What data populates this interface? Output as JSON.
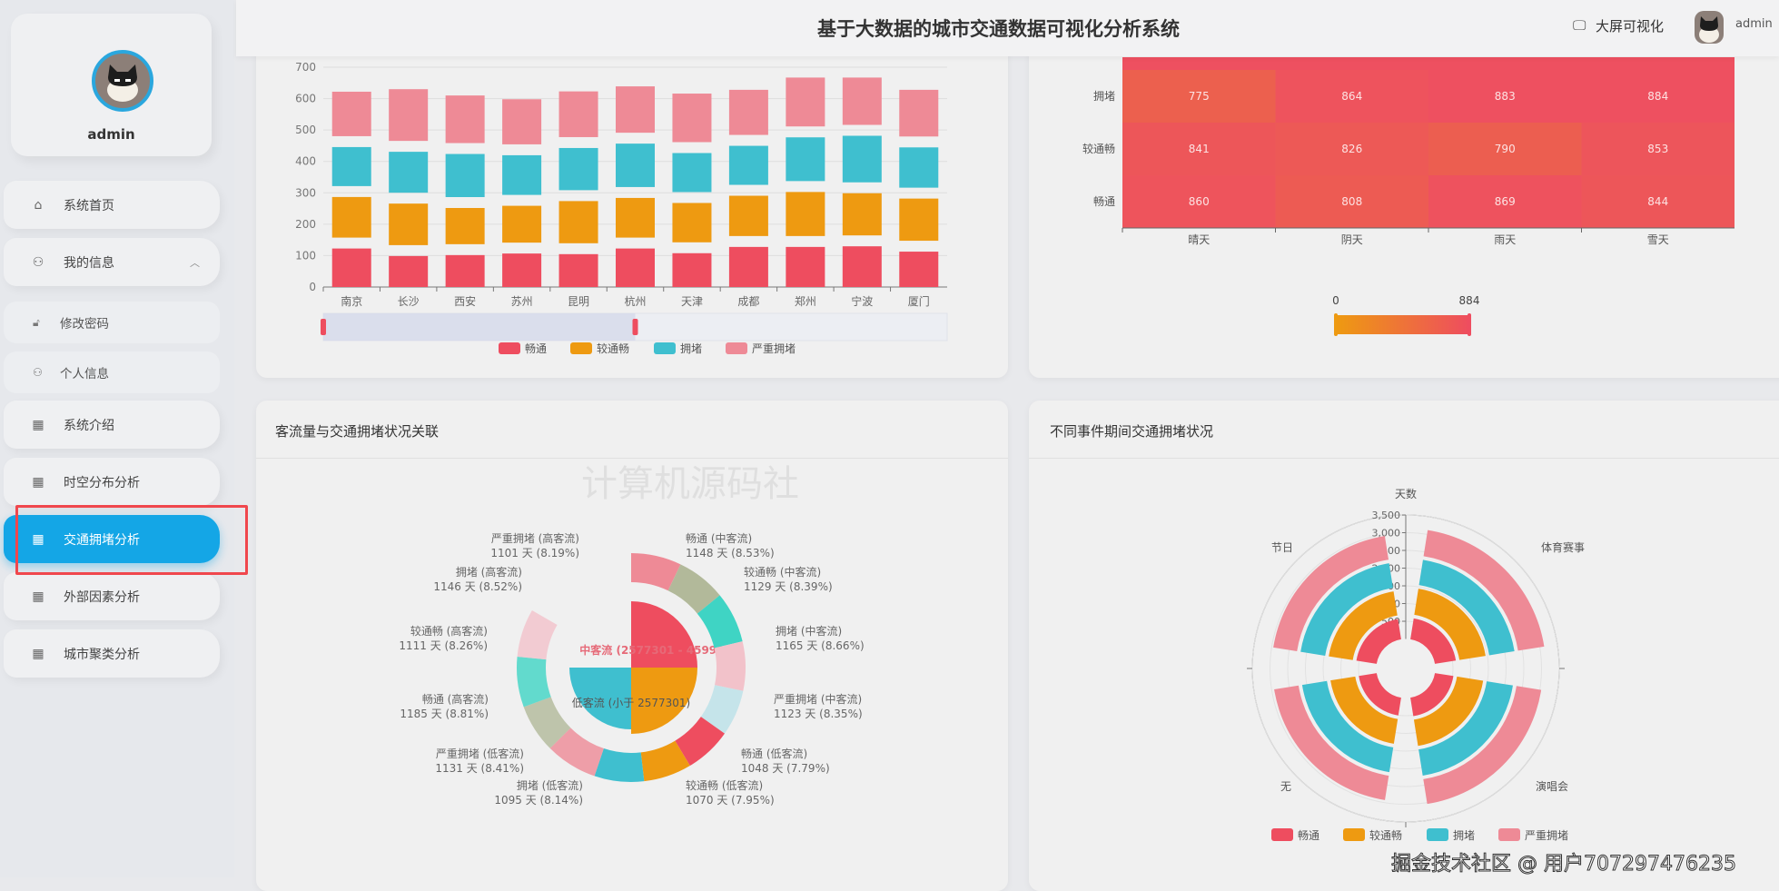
{
  "header": {
    "title": "基于大数据的城市交通数据可视化分析系统",
    "bigscreen_label": "大屏可视化",
    "user": "admin",
    "bigscreen_icon": "monitor-icon"
  },
  "sidebar": {
    "username": "admin",
    "items": [
      {
        "label": "系统首页",
        "icon": "home-icon"
      },
      {
        "label": "我的信息",
        "icon": "user-icon"
      },
      {
        "label": "修改密码",
        "icon": "lock-icon"
      },
      {
        "label": "个人信息",
        "icon": "user-icon"
      },
      {
        "label": "系统介绍",
        "icon": "grid-icon"
      },
      {
        "label": "时空分布分析",
        "icon": "grid-icon"
      },
      {
        "label": "交通拥堵分析",
        "icon": "grid-icon"
      },
      {
        "label": "外部因素分析",
        "icon": "grid-icon"
      },
      {
        "label": "城市聚类分析",
        "icon": "grid-icon"
      }
    ],
    "active": "交通拥堵分析"
  },
  "colors": {
    "accent": "#14a6e6",
    "s1": "#ee4d5f",
    "s2": "#ee9a11",
    "s3": "#3fbfcf",
    "s4": "#ee8a96"
  },
  "cards": {
    "bottom_left_title": "客流量与交通拥堵状况关联",
    "bottom_right_title": "不同事件期间交通拥堵状况"
  },
  "watermark": {
    "text": "掘金技术社区 @ 用户707297476235",
    "faint": "计算机源码社"
  },
  "chart_data": [
    {
      "type": "bar",
      "stacked": true,
      "categories": [
        "南京",
        "长沙",
        "西安",
        "苏州",
        "昆明",
        "杭州",
        "天津",
        "成都",
        "郑州",
        "宁波",
        "厦门"
      ],
      "series": [
        {
          "name": "畅通",
          "values": [
            140,
            116,
            119,
            124,
            122,
            140,
            125,
            145,
            145,
            147,
            130
          ]
        },
        {
          "name": "较通畅",
          "values": [
            164,
            167,
            150,
            152,
            169,
            161,
            160,
            163,
            175,
            169,
            169
          ]
        },
        {
          "name": "拥堵",
          "values": [
            159,
            165,
            172,
            161,
            169,
            173,
            159,
            159,
            174,
            183,
            163
          ]
        },
        {
          "name": "严重拥堵",
          "values": [
            159,
            182,
            169,
            161,
            163,
            165,
            172,
            161,
            173,
            168,
            166
          ]
        }
      ],
      "yticks": [
        "0",
        "100",
        "200",
        "300",
        "400",
        "500",
        "600",
        "700"
      ],
      "ylim": [
        0,
        700
      ],
      "grid": true,
      "legend": "bottom",
      "datazoom": [
        0,
        50
      ]
    },
    {
      "type": "heatmap",
      "x": [
        "晴天",
        "阴天",
        "雨天",
        "雪天"
      ],
      "y": [
        "拥堵",
        "较通畅",
        "畅通"
      ],
      "values": [
        [
          775,
          864,
          883,
          884
        ],
        [
          841,
          826,
          790,
          853
        ],
        [
          860,
          808,
          869,
          844
        ]
      ],
      "visual_map": {
        "min": "0",
        "max": "884"
      }
    },
    {
      "type": "pie",
      "inner": [
        {
          "name": "中客流 (2577301 - 4599067)"
        },
        {
          "name": "低客流 (小于 2577301)"
        }
      ],
      "outer": [
        {
          "name": "畅通 (中客流)",
          "days": 1148,
          "pct": "8.53%"
        },
        {
          "name": "较通畅 (中客流)",
          "days": 1129,
          "pct": "8.39%"
        },
        {
          "name": "拥堵 (中客流)",
          "days": 1165,
          "pct": "8.66%"
        },
        {
          "name": "严重拥堵 (中客流)",
          "days": 1123,
          "pct": "8.35%"
        },
        {
          "name": "畅通 (低客流)",
          "days": 1048,
          "pct": "7.79%"
        },
        {
          "name": "较通畅 (低客流)",
          "days": 1070,
          "pct": "7.95%"
        },
        {
          "name": "拥堵 (低客流)",
          "days": 1095,
          "pct": "8.14%"
        },
        {
          "name": "严重拥堵 (低客流)",
          "days": 1131,
          "pct": "8.41%"
        },
        {
          "name": "畅通 (高客流)",
          "days": 1185,
          "pct": "8.81%"
        },
        {
          "name": "较通畅 (高客流)",
          "days": 1111,
          "pct": "8.26%"
        },
        {
          "name": "拥堵 (高客流)",
          "days": 1146,
          "pct": "8.52%"
        },
        {
          "name": "严重拥堵 (高客流)",
          "days": 1101,
          "pct": "8.19%"
        }
      ],
      "unit": "天"
    },
    {
      "type": "bar",
      "polar": true,
      "stacked": true,
      "categories": [
        "体育赛事",
        "演唱会",
        "无",
        "节日"
      ],
      "radius_name": "天数",
      "rlim": [
        0,
        3500
      ],
      "rticks": [
        "500",
        "1,000",
        "1,500",
        "2,000",
        "2,500",
        "3,000",
        "3,500"
      ],
      "series": [
        {
          "name": "畅通",
          "values": [
            650,
            580,
            560,
            630
          ]
        },
        {
          "name": "较通畅",
          "values": [
            850,
            850,
            810,
            790
          ]
        },
        {
          "name": "拥堵",
          "values": [
            825,
            850,
            810,
            805
          ]
        },
        {
          "name": "严重拥堵",
          "values": [
            850,
            810,
            800,
            780
          ]
        }
      ],
      "legend": "bottom"
    }
  ]
}
